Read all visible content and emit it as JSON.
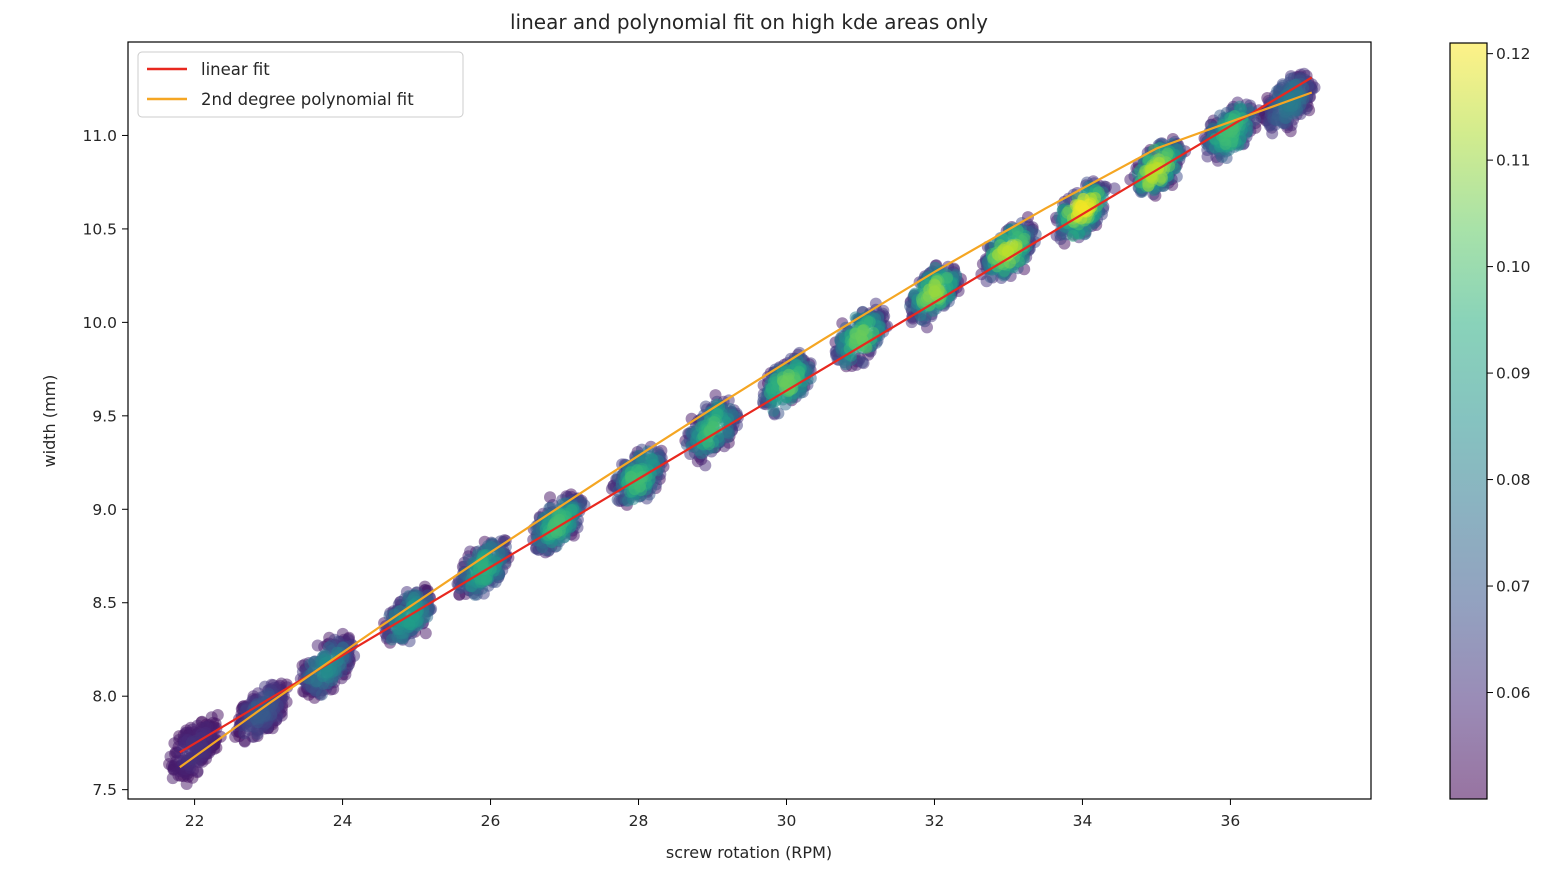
{
  "chart_data": {
    "type": "scatter",
    "title": "linear and polynomial fit on high kde areas only",
    "xlabel": "screw rotation (RPM)",
    "ylabel": "width (mm)",
    "xlim": [
      21.1,
      37.9
    ],
    "ylim": [
      7.45,
      11.5
    ],
    "xticks": [
      22,
      24,
      26,
      28,
      30,
      32,
      34,
      36
    ],
    "yticks": [
      7.5,
      8.0,
      8.5,
      9.0,
      9.5,
      10.0,
      10.5,
      11.0
    ],
    "grid": false,
    "legend": {
      "placement": "upper-left"
    },
    "series": [
      {
        "name": "linear fit",
        "kind": "line",
        "color": "#e8281f",
        "x": [
          21.8,
          37.1
        ],
        "y": [
          7.7,
          11.31
        ]
      },
      {
        "name": "2nd degree polynomial fit",
        "kind": "line",
        "color": "#f5a623",
        "x": [
          21.8,
          23.0,
          24.5,
          26.0,
          27.5,
          29.0,
          30.5,
          32.0,
          33.5,
          35.0,
          37.1
        ],
        "y": [
          7.62,
          7.96,
          8.37,
          8.77,
          9.16,
          9.54,
          9.91,
          10.27,
          10.61,
          10.93,
          11.23
        ]
      }
    ],
    "clusters": [
      {
        "x": 22.0,
        "y": 7.72,
        "density": 0.06
      },
      {
        "x": 22.9,
        "y": 7.92,
        "density": 0.07
      },
      {
        "x": 23.8,
        "y": 8.16,
        "density": 0.085
      },
      {
        "x": 24.9,
        "y": 8.42,
        "density": 0.09
      },
      {
        "x": 25.9,
        "y": 8.68,
        "density": 0.095
      },
      {
        "x": 26.9,
        "y": 8.92,
        "density": 0.1
      },
      {
        "x": 28.0,
        "y": 9.17,
        "density": 0.1
      },
      {
        "x": 29.0,
        "y": 9.43,
        "density": 0.1
      },
      {
        "x": 30.0,
        "y": 9.67,
        "density": 0.105
      },
      {
        "x": 31.0,
        "y": 9.92,
        "density": 0.105
      },
      {
        "x": 32.0,
        "y": 10.16,
        "density": 0.11
      },
      {
        "x": 33.0,
        "y": 10.38,
        "density": 0.115
      },
      {
        "x": 34.0,
        "y": 10.6,
        "density": 0.12
      },
      {
        "x": 35.0,
        "y": 10.82,
        "density": 0.115
      },
      {
        "x": 36.0,
        "y": 11.02,
        "density": 0.1
      },
      {
        "x": 36.8,
        "y": 11.18,
        "density": 0.08
      }
    ],
    "colorbar": {
      "colormap": "viridis",
      "alpha": 0.5,
      "range": [
        0.05,
        0.121
      ],
      "ticks": [
        0.06,
        0.07,
        0.08,
        0.09,
        0.1,
        0.11,
        0.12
      ],
      "tick_labels": [
        "0.06",
        "0.07",
        "0.08",
        "0.09",
        "0.10",
        "0.11",
        "0.12"
      ]
    }
  }
}
